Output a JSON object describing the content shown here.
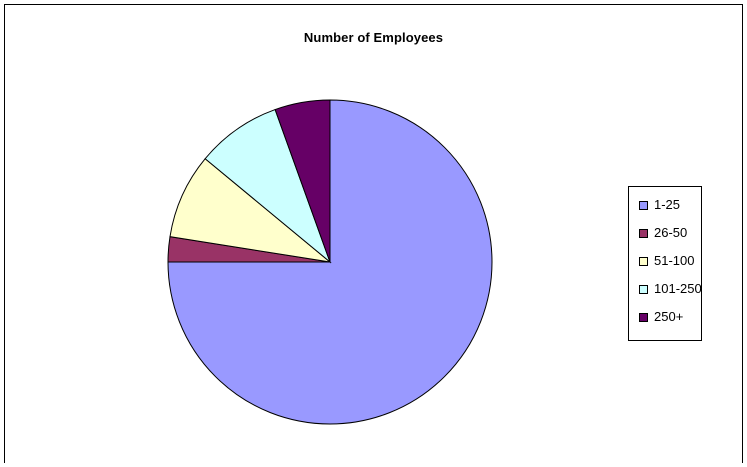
{
  "chart_data": {
    "type": "pie",
    "title": "Number of Employees",
    "categories": [
      "1-25",
      "26-50",
      "51-100",
      "101-250",
      "250+"
    ],
    "values": [
      75,
      2.5,
      8.5,
      8.5,
      5.5
    ],
    "colors": [
      "#9999FF",
      "#993366",
      "#FFFFCC",
      "#CCFFFF",
      "#660066"
    ],
    "start_angle_deg": 0,
    "direction": "clockwise",
    "legend_position": "right"
  }
}
